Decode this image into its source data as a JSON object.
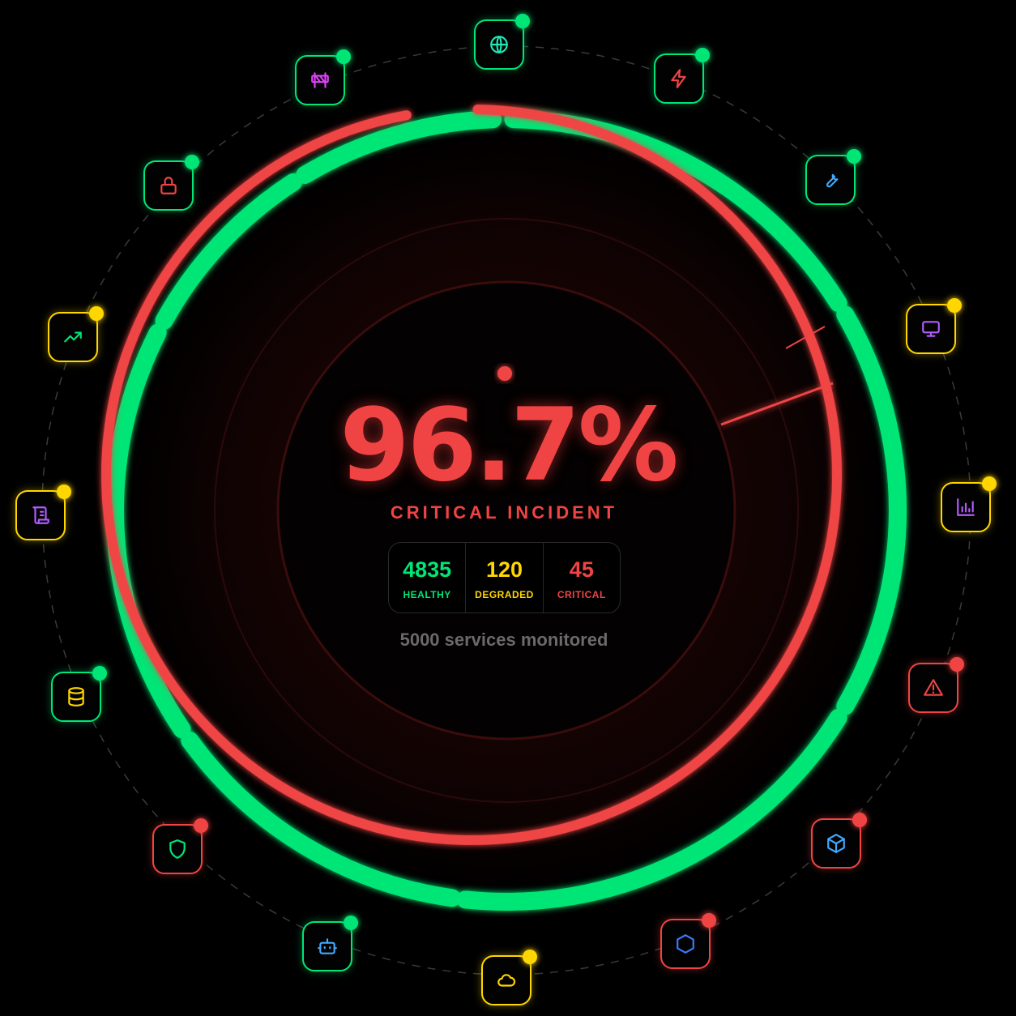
{
  "colors": {
    "healthy": "#00e676",
    "degraded": "#ffd600",
    "critical": "#f04444",
    "muted": "#6a6a6a"
  },
  "gauge": {
    "value": "96.7%",
    "status": "CRITICAL INCIDENT",
    "footer": "5000 services monitored"
  },
  "stats": [
    {
      "value": "4835",
      "label": "HEALTHY",
      "color": "#00e676"
    },
    {
      "value": "120",
      "label": "DEGRADED",
      "color": "#ffd600"
    },
    {
      "value": "45",
      "label": "CRITICAL",
      "color": "#f04444"
    }
  ],
  "services": [
    {
      "icon": "globe-icon",
      "status": "healthy",
      "icon_color": "#1de9b6"
    },
    {
      "icon": "zap-icon",
      "status": "healthy",
      "icon_color": "#f04444"
    },
    {
      "icon": "wrench-icon",
      "status": "healthy",
      "icon_color": "#40a9ff"
    },
    {
      "icon": "monitor-icon",
      "status": "degraded",
      "icon_color": "#b15cff"
    },
    {
      "icon": "bar-chart-icon",
      "status": "degraded",
      "icon_color": "#b15cff"
    },
    {
      "icon": "alert-triangle-icon",
      "status": "critical",
      "icon_color": "#f04444"
    },
    {
      "icon": "box-icon",
      "status": "critical",
      "icon_color": "#40a9ff"
    },
    {
      "icon": "hexagon-icon",
      "status": "critical",
      "icon_color": "#3d7bff"
    },
    {
      "icon": "cloud-icon",
      "status": "degraded",
      "icon_color": "#ffd600"
    },
    {
      "icon": "bot-icon",
      "status": "healthy",
      "icon_color": "#40a9ff"
    },
    {
      "icon": "shield-icon",
      "status": "critical",
      "icon_color": "#00e676"
    },
    {
      "icon": "database-icon",
      "status": "healthy",
      "icon_color": "#ffd600"
    },
    {
      "icon": "scroll-icon",
      "status": "degraded",
      "icon_color": "#b15cff"
    },
    {
      "icon": "trending-up-icon",
      "status": "degraded",
      "icon_color": "#00e676"
    },
    {
      "icon": "lock-icon",
      "status": "healthy",
      "icon_color": "#f04444"
    },
    {
      "icon": "construction-icon",
      "status": "healthy",
      "icon_color": "#e040fb"
    }
  ]
}
